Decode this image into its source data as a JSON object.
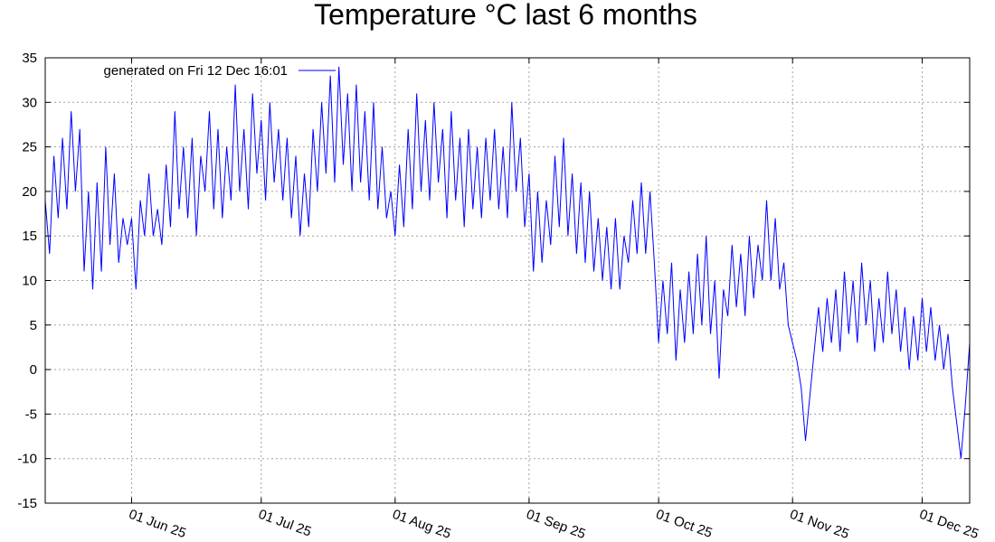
{
  "chart_data": {
    "type": "line",
    "title": "Temperature °C last 6 months",
    "xlabel": "",
    "ylabel": "",
    "ylim": [
      -15,
      35
    ],
    "yticks": [
      -15,
      -10,
      -5,
      0,
      5,
      10,
      15,
      20,
      25,
      30,
      35
    ],
    "xlim": [
      "2025-05-12",
      "2025-12-12"
    ],
    "xticks": [
      {
        "date": "2025-06-01",
        "label": "01 Jun 25"
      },
      {
        "date": "2025-07-01",
        "label": "01 Jul 25"
      },
      {
        "date": "2025-08-01",
        "label": "01 Aug 25"
      },
      {
        "date": "2025-09-01",
        "label": "01 Sep 25"
      },
      {
        "date": "2025-10-01",
        "label": "01 Oct 25"
      },
      {
        "date": "2025-11-01",
        "label": "01 Nov 25"
      },
      {
        "date": "2025-12-01",
        "label": "01 Dec 25"
      }
    ],
    "grid": true,
    "legend_position": "top-left",
    "series": [
      {
        "name": "generated on Fri 12 Dec 16:01",
        "color": "#0000ff",
        "points": [
          [
            "2025-05-12",
            19
          ],
          [
            "2025-05-13",
            13
          ],
          [
            "2025-05-14",
            24
          ],
          [
            "2025-05-15",
            17
          ],
          [
            "2025-05-16",
            26
          ],
          [
            "2025-05-17",
            18
          ],
          [
            "2025-05-18",
            29
          ],
          [
            "2025-05-19",
            20
          ],
          [
            "2025-05-20",
            27
          ],
          [
            "2025-05-21",
            11
          ],
          [
            "2025-05-22",
            20
          ],
          [
            "2025-05-23",
            9
          ],
          [
            "2025-05-24",
            21
          ],
          [
            "2025-05-25",
            11
          ],
          [
            "2025-05-26",
            25
          ],
          [
            "2025-05-27",
            14
          ],
          [
            "2025-05-28",
            22
          ],
          [
            "2025-05-29",
            12
          ],
          [
            "2025-05-30",
            17
          ],
          [
            "2025-05-31",
            14
          ],
          [
            "2025-06-01",
            17
          ],
          [
            "2025-06-02",
            9
          ],
          [
            "2025-06-03",
            19
          ],
          [
            "2025-06-04",
            15
          ],
          [
            "2025-06-05",
            22
          ],
          [
            "2025-06-06",
            15
          ],
          [
            "2025-06-07",
            18
          ],
          [
            "2025-06-08",
            14
          ],
          [
            "2025-06-09",
            23
          ],
          [
            "2025-06-10",
            16
          ],
          [
            "2025-06-11",
            29
          ],
          [
            "2025-06-12",
            18
          ],
          [
            "2025-06-13",
            25
          ],
          [
            "2025-06-14",
            17
          ],
          [
            "2025-06-15",
            26
          ],
          [
            "2025-06-16",
            15
          ],
          [
            "2025-06-17",
            24
          ],
          [
            "2025-06-18",
            20
          ],
          [
            "2025-06-19",
            29
          ],
          [
            "2025-06-20",
            18
          ],
          [
            "2025-06-21",
            27
          ],
          [
            "2025-06-22",
            17
          ],
          [
            "2025-06-23",
            25
          ],
          [
            "2025-06-24",
            19
          ],
          [
            "2025-06-25",
            32
          ],
          [
            "2025-06-26",
            20
          ],
          [
            "2025-06-27",
            27
          ],
          [
            "2025-06-28",
            18
          ],
          [
            "2025-06-29",
            31
          ],
          [
            "2025-06-30",
            22
          ],
          [
            "2025-07-01",
            28
          ],
          [
            "2025-07-02",
            19
          ],
          [
            "2025-07-03",
            30
          ],
          [
            "2025-07-04",
            21
          ],
          [
            "2025-07-05",
            27
          ],
          [
            "2025-07-06",
            19
          ],
          [
            "2025-07-07",
            26
          ],
          [
            "2025-07-08",
            17
          ],
          [
            "2025-07-09",
            24
          ],
          [
            "2025-07-10",
            15
          ],
          [
            "2025-07-11",
            22
          ],
          [
            "2025-07-12",
            16
          ],
          [
            "2025-07-13",
            27
          ],
          [
            "2025-07-14",
            20
          ],
          [
            "2025-07-15",
            30
          ],
          [
            "2025-07-16",
            22
          ],
          [
            "2025-07-17",
            33
          ],
          [
            "2025-07-18",
            21
          ],
          [
            "2025-07-19",
            34
          ],
          [
            "2025-07-20",
            23
          ],
          [
            "2025-07-21",
            31
          ],
          [
            "2025-07-22",
            20
          ],
          [
            "2025-07-23",
            32
          ],
          [
            "2025-07-24",
            21
          ],
          [
            "2025-07-25",
            29
          ],
          [
            "2025-07-26",
            19
          ],
          [
            "2025-07-27",
            30
          ],
          [
            "2025-07-28",
            18
          ],
          [
            "2025-07-29",
            25
          ],
          [
            "2025-07-30",
            17
          ],
          [
            "2025-07-31",
            20
          ],
          [
            "2025-08-01",
            15
          ],
          [
            "2025-08-02",
            23
          ],
          [
            "2025-08-03",
            16
          ],
          [
            "2025-08-04",
            27
          ],
          [
            "2025-08-05",
            18
          ],
          [
            "2025-08-06",
            31
          ],
          [
            "2025-08-07",
            20
          ],
          [
            "2025-08-08",
            28
          ],
          [
            "2025-08-09",
            19
          ],
          [
            "2025-08-10",
            30
          ],
          [
            "2025-08-11",
            21
          ],
          [
            "2025-08-12",
            27
          ],
          [
            "2025-08-13",
            17
          ],
          [
            "2025-08-14",
            29
          ],
          [
            "2025-08-15",
            19
          ],
          [
            "2025-08-16",
            26
          ],
          [
            "2025-08-17",
            16
          ],
          [
            "2025-08-18",
            27
          ],
          [
            "2025-08-19",
            18
          ],
          [
            "2025-08-20",
            25
          ],
          [
            "2025-08-21",
            17
          ],
          [
            "2025-08-22",
            26
          ],
          [
            "2025-08-23",
            19
          ],
          [
            "2025-08-24",
            27
          ],
          [
            "2025-08-25",
            18
          ],
          [
            "2025-08-26",
            25
          ],
          [
            "2025-08-27",
            17
          ],
          [
            "2025-08-28",
            30
          ],
          [
            "2025-08-29",
            20
          ],
          [
            "2025-08-30",
            26
          ],
          [
            "2025-08-31",
            16
          ],
          [
            "2025-09-01",
            22
          ],
          [
            "2025-09-02",
            11
          ],
          [
            "2025-09-03",
            20
          ],
          [
            "2025-09-04",
            12
          ],
          [
            "2025-09-05",
            19
          ],
          [
            "2025-09-06",
            14
          ],
          [
            "2025-09-07",
            24
          ],
          [
            "2025-09-08",
            16
          ],
          [
            "2025-09-09",
            26
          ],
          [
            "2025-09-10",
            15
          ],
          [
            "2025-09-11",
            22
          ],
          [
            "2025-09-12",
            13
          ],
          [
            "2025-09-13",
            21
          ],
          [
            "2025-09-14",
            12
          ],
          [
            "2025-09-15",
            20
          ],
          [
            "2025-09-16",
            11
          ],
          [
            "2025-09-17",
            17
          ],
          [
            "2025-09-18",
            10
          ],
          [
            "2025-09-19",
            16
          ],
          [
            "2025-09-20",
            9
          ],
          [
            "2025-09-21",
            17
          ],
          [
            "2025-09-22",
            9
          ],
          [
            "2025-09-23",
            15
          ],
          [
            "2025-09-24",
            12
          ],
          [
            "2025-09-25",
            19
          ],
          [
            "2025-09-26",
            13
          ],
          [
            "2025-09-27",
            21
          ],
          [
            "2025-09-28",
            13
          ],
          [
            "2025-09-29",
            20
          ],
          [
            "2025-09-30",
            12
          ],
          [
            "2025-10-01",
            3
          ],
          [
            "2025-10-02",
            10
          ],
          [
            "2025-10-03",
            4
          ],
          [
            "2025-10-04",
            12
          ],
          [
            "2025-10-05",
            1
          ],
          [
            "2025-10-06",
            9
          ],
          [
            "2025-10-07",
            3
          ],
          [
            "2025-10-08",
            11
          ],
          [
            "2025-10-09",
            4
          ],
          [
            "2025-10-10",
            13
          ],
          [
            "2025-10-11",
            5
          ],
          [
            "2025-10-12",
            15
          ],
          [
            "2025-10-13",
            4
          ],
          [
            "2025-10-14",
            10
          ],
          [
            "2025-10-15",
            -1
          ],
          [
            "2025-10-16",
            9
          ],
          [
            "2025-10-17",
            6
          ],
          [
            "2025-10-18",
            14
          ],
          [
            "2025-10-19",
            7
          ],
          [
            "2025-10-20",
            13
          ],
          [
            "2025-10-21",
            6
          ],
          [
            "2025-10-22",
            15
          ],
          [
            "2025-10-23",
            8
          ],
          [
            "2025-10-24",
            14
          ],
          [
            "2025-10-25",
            10
          ],
          [
            "2025-10-26",
            19
          ],
          [
            "2025-10-27",
            10
          ],
          [
            "2025-10-28",
            17
          ],
          [
            "2025-10-29",
            9
          ],
          [
            "2025-10-30",
            12
          ],
          [
            "2025-10-31",
            5
          ],
          [
            "2025-11-01",
            3
          ],
          [
            "2025-11-02",
            1
          ],
          [
            "2025-11-03",
            -2
          ],
          [
            "2025-11-04",
            -8
          ],
          [
            "2025-11-05",
            -3
          ],
          [
            "2025-11-06",
            2
          ],
          [
            "2025-11-07",
            7
          ],
          [
            "2025-11-08",
            2
          ],
          [
            "2025-11-09",
            8
          ],
          [
            "2025-11-10",
            3
          ],
          [
            "2025-11-11",
            9
          ],
          [
            "2025-11-12",
            2
          ],
          [
            "2025-11-13",
            11
          ],
          [
            "2025-11-14",
            4
          ],
          [
            "2025-11-15",
            10
          ],
          [
            "2025-11-16",
            3
          ],
          [
            "2025-11-17",
            12
          ],
          [
            "2025-11-18",
            5
          ],
          [
            "2025-11-19",
            10
          ],
          [
            "2025-11-20",
            2
          ],
          [
            "2025-11-21",
            8
          ],
          [
            "2025-11-22",
            3
          ],
          [
            "2025-11-23",
            11
          ],
          [
            "2025-11-24",
            4
          ],
          [
            "2025-11-25",
            9
          ],
          [
            "2025-11-26",
            2
          ],
          [
            "2025-11-27",
            7
          ],
          [
            "2025-11-28",
            0
          ],
          [
            "2025-11-29",
            6
          ],
          [
            "2025-11-30",
            1
          ],
          [
            "2025-12-01",
            8
          ],
          [
            "2025-12-02",
            2
          ],
          [
            "2025-12-03",
            7
          ],
          [
            "2025-12-04",
            1
          ],
          [
            "2025-12-05",
            5
          ],
          [
            "2025-12-06",
            0
          ],
          [
            "2025-12-07",
            4
          ],
          [
            "2025-12-08",
            -2
          ],
          [
            "2025-12-09",
            -6
          ],
          [
            "2025-12-10",
            -10
          ],
          [
            "2025-12-11",
            -4
          ],
          [
            "2025-12-12",
            3
          ]
        ]
      }
    ]
  }
}
